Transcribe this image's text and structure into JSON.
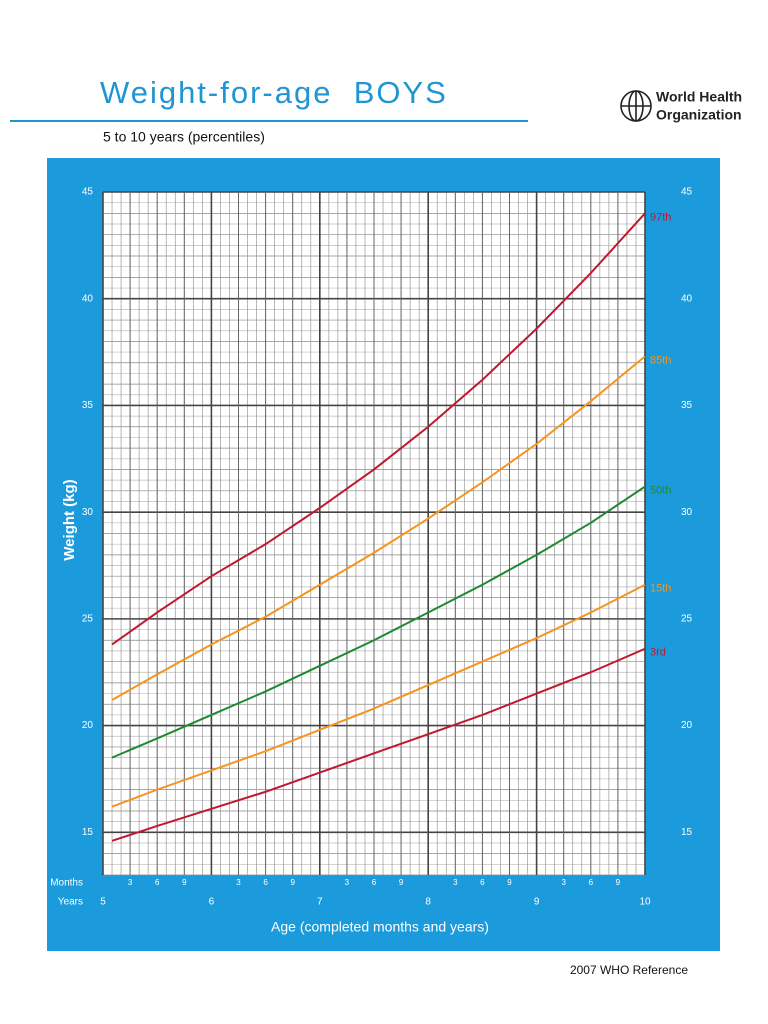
{
  "chart_data": {
    "type": "line",
    "title": "Weight-for-age  BOYS",
    "subtitle": "5 to 10 years (percentiles)",
    "organization": [
      "World Health",
      "Organization"
    ],
    "note": "2007 WHO Reference",
    "ylabel": "Weight (kg)",
    "xlabel": "Age (completed months and years)",
    "month_row_label": "Months",
    "year_row_label": "Years",
    "xlim": [
      60,
      120
    ],
    "xticks": [
      {
        "value": 60,
        "label": "5"
      },
      {
        "value": 72,
        "label": "6"
      },
      {
        "value": 84,
        "label": "7"
      },
      {
        "value": 96,
        "label": "8"
      },
      {
        "value": 108,
        "label": "9"
      },
      {
        "value": 120,
        "label": "10"
      }
    ],
    "month_ticks": [
      {
        "value": 63,
        "label": "3"
      },
      {
        "value": 66,
        "label": "6"
      },
      {
        "value": 69,
        "label": "9"
      },
      {
        "value": 75,
        "label": "3"
      },
      {
        "value": 78,
        "label": "6"
      },
      {
        "value": 81,
        "label": "9"
      },
      {
        "value": 87,
        "label": "3"
      },
      {
        "value": 90,
        "label": "6"
      },
      {
        "value": 93,
        "label": "9"
      },
      {
        "value": 99,
        "label": "3"
      },
      {
        "value": 102,
        "label": "6"
      },
      {
        "value": 105,
        "label": "9"
      },
      {
        "value": 111,
        "label": "3"
      },
      {
        "value": 114,
        "label": "6"
      },
      {
        "value": 117,
        "label": "9"
      }
    ],
    "ylim": [
      13,
      45
    ],
    "yticks": [
      15,
      20,
      25,
      30,
      35,
      40,
      45
    ],
    "grid": true,
    "x": [
      61,
      66,
      72,
      78,
      84,
      90,
      96,
      102,
      108,
      114,
      120
    ],
    "series": [
      {
        "name": "97th",
        "color": "#c0182e",
        "values": [
          23.8,
          25.3,
          27.0,
          28.5,
          30.2,
          32.0,
          34.0,
          36.2,
          38.6,
          41.2,
          44.0
        ]
      },
      {
        "name": "85th",
        "color": "#f7931e",
        "values": [
          21.2,
          22.4,
          23.8,
          25.1,
          26.6,
          28.1,
          29.7,
          31.4,
          33.2,
          35.2,
          37.3
        ]
      },
      {
        "name": "50th",
        "color": "#1e8a30",
        "values": [
          18.5,
          19.4,
          20.5,
          21.6,
          22.8,
          24.0,
          25.3,
          26.6,
          28.0,
          29.5,
          31.2
        ]
      },
      {
        "name": "15th",
        "color": "#f7931e",
        "values": [
          16.2,
          17.0,
          17.9,
          18.8,
          19.8,
          20.8,
          21.9,
          23.0,
          24.1,
          25.3,
          26.6
        ]
      },
      {
        "name": "3rd",
        "color": "#c0182e",
        "values": [
          14.6,
          15.3,
          16.1,
          16.9,
          17.8,
          18.7,
          19.6,
          20.5,
          21.5,
          22.5,
          23.6
        ]
      }
    ]
  }
}
